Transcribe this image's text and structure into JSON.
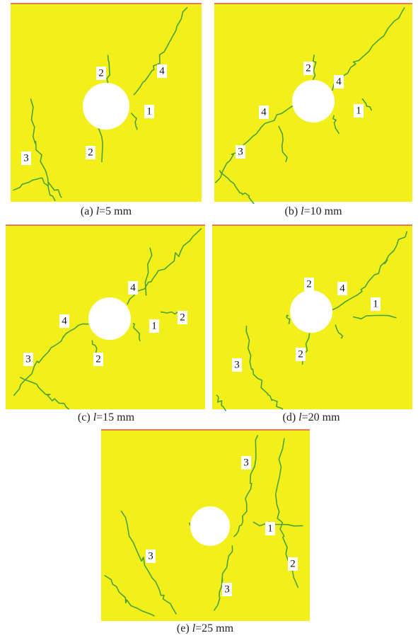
{
  "panels": [
    {
      "caption": {
        "prefix": "(a) ",
        "symbol": "l",
        "rest": "=5 mm"
      },
      "labels": [
        "2",
        "4",
        "1",
        "2",
        "3"
      ]
    },
    {
      "caption": {
        "prefix": "(b) ",
        "symbol": "l",
        "rest": "=10 mm"
      },
      "labels": [
        "2",
        "4",
        "4",
        "1",
        "3"
      ]
    },
    {
      "caption": {
        "prefix": "(c) ",
        "symbol": "l",
        "rest": "=15 mm"
      },
      "labels": [
        "4",
        "4",
        "1",
        "2",
        "2",
        "3"
      ]
    },
    {
      "caption": {
        "prefix": "(d) ",
        "symbol": "l",
        "rest": "=20 mm"
      },
      "labels": [
        "2",
        "4",
        "1",
        "2",
        "3"
      ]
    },
    {
      "caption": {
        "prefix": "(e) ",
        "symbol": "l",
        "rest": "=25 mm"
      },
      "labels": [
        "3",
        "1",
        "2",
        "3",
        "3"
      ]
    }
  ]
}
